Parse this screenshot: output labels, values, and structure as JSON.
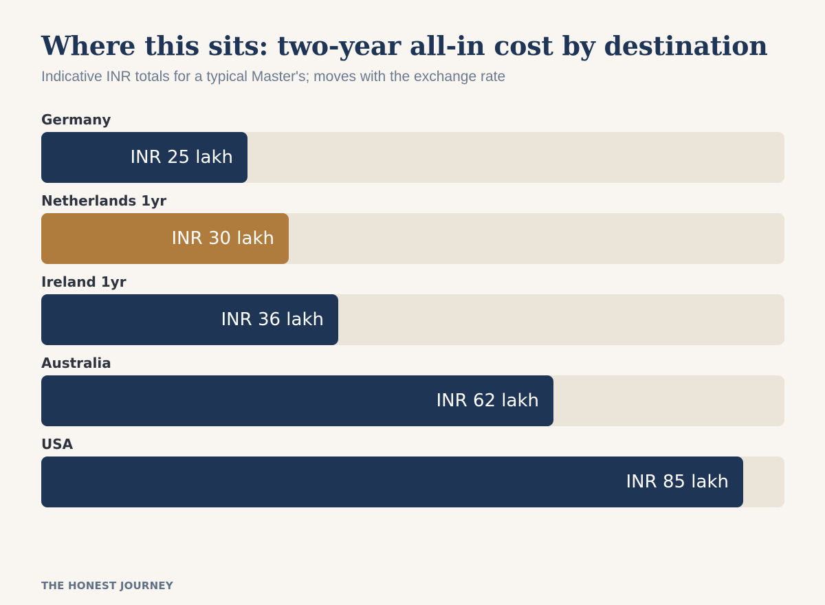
{
  "header": {
    "title": "Where this sits: two-year all-in cost by destination",
    "subtitle": "Indicative INR totals for a typical Master's; moves with the exchange rate"
  },
  "footer": {
    "brand": "THE HONEST JOURNEY"
  },
  "colors": {
    "primary": "#1e3556",
    "highlight": "#b07c3e",
    "track": "#ebe4d9",
    "background": "#f9f6f1"
  },
  "chart_data": {
    "type": "bar",
    "orientation": "horizontal",
    "title": "Where this sits: two-year all-in cost by destination",
    "subtitle": "Indicative INR totals for a typical Master's; moves with the exchange rate",
    "unit": "INR lakh",
    "xlim": [
      0,
      90
    ],
    "grid": false,
    "categories": [
      "Germany",
      "Netherlands 1yr",
      "Ireland 1yr",
      "Australia",
      "USA"
    ],
    "values": [
      25,
      30,
      36,
      62,
      85
    ],
    "value_labels": [
      "INR 25 lakh",
      "INR 30 lakh",
      "INR 36 lakh",
      "INR 62 lakh",
      "INR 85 lakh"
    ],
    "highlighted_category": "Netherlands 1yr"
  }
}
